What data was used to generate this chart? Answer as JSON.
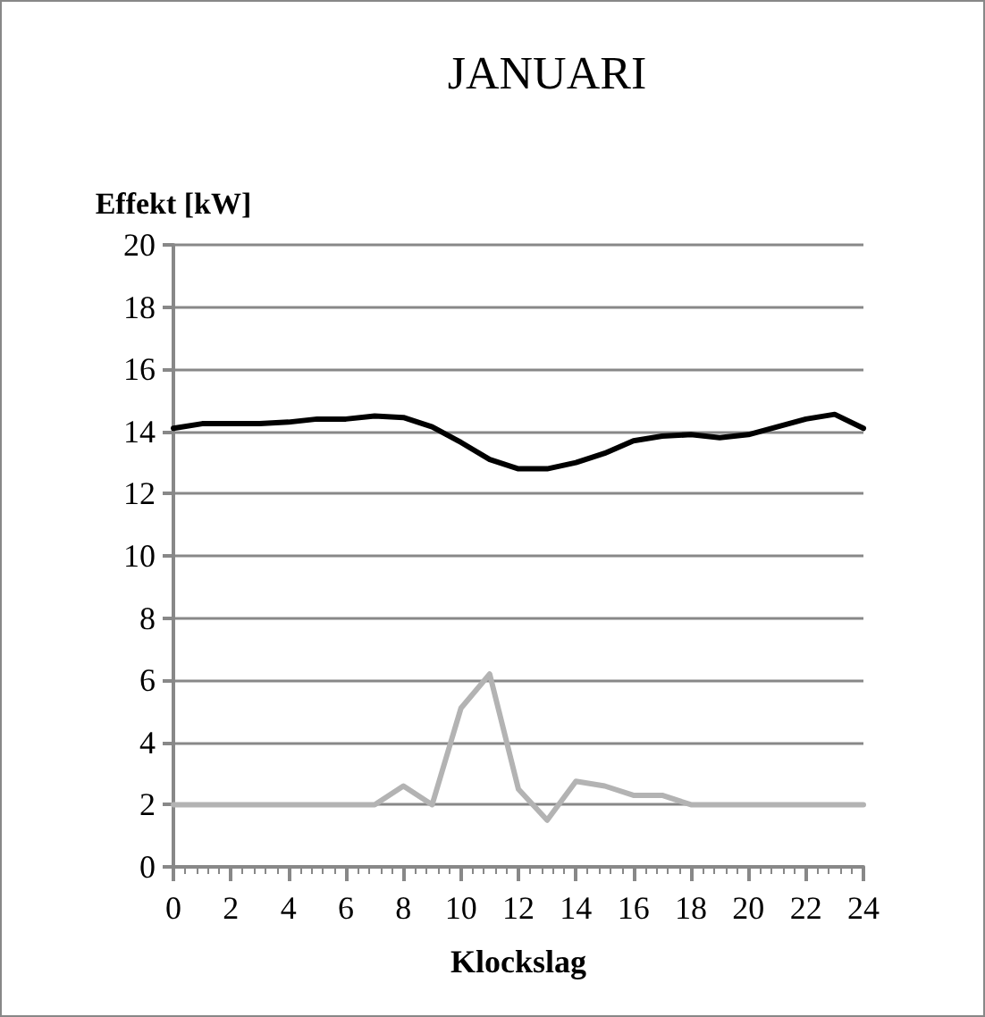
{
  "chart_data": {
    "type": "line",
    "title": "JANUARI",
    "xlabel": "Klockslag",
    "ylabel": "Effekt [kW]",
    "x": [
      0,
      1,
      2,
      3,
      4,
      5,
      6,
      7,
      8,
      9,
      10,
      11,
      12,
      13,
      14,
      15,
      16,
      17,
      18,
      19,
      20,
      21,
      22,
      23,
      24
    ],
    "series": [
      {
        "color": "#000000",
        "values": [
          14.1,
          14.25,
          14.25,
          14.25,
          14.3,
          14.4,
          14.4,
          14.5,
          14.45,
          14.15,
          13.65,
          13.1,
          12.8,
          12.8,
          13.0,
          13.3,
          13.7,
          13.85,
          13.9,
          13.8,
          13.9,
          14.15,
          14.4,
          14.55,
          14.1
        ]
      },
      {
        "color": "#b3b3b3",
        "values": [
          2,
          2,
          2,
          2,
          2,
          2,
          2,
          2,
          2.6,
          2.0,
          5.1,
          6.2,
          2.5,
          1.5,
          2.75,
          2.6,
          2.3,
          2.3,
          2.0,
          2,
          2,
          2,
          2,
          2,
          2
        ]
      }
    ],
    "xlim": [
      0,
      24
    ],
    "xticks": [
      0,
      2,
      4,
      6,
      8,
      10,
      12,
      14,
      16,
      18,
      20,
      22,
      24
    ],
    "ylim": [
      0,
      20
    ],
    "yticks": [
      0,
      2,
      4,
      6,
      8,
      10,
      12,
      14,
      16,
      18,
      20
    ],
    "grid": "y",
    "marker": "none",
    "line_style": "solid"
  }
}
